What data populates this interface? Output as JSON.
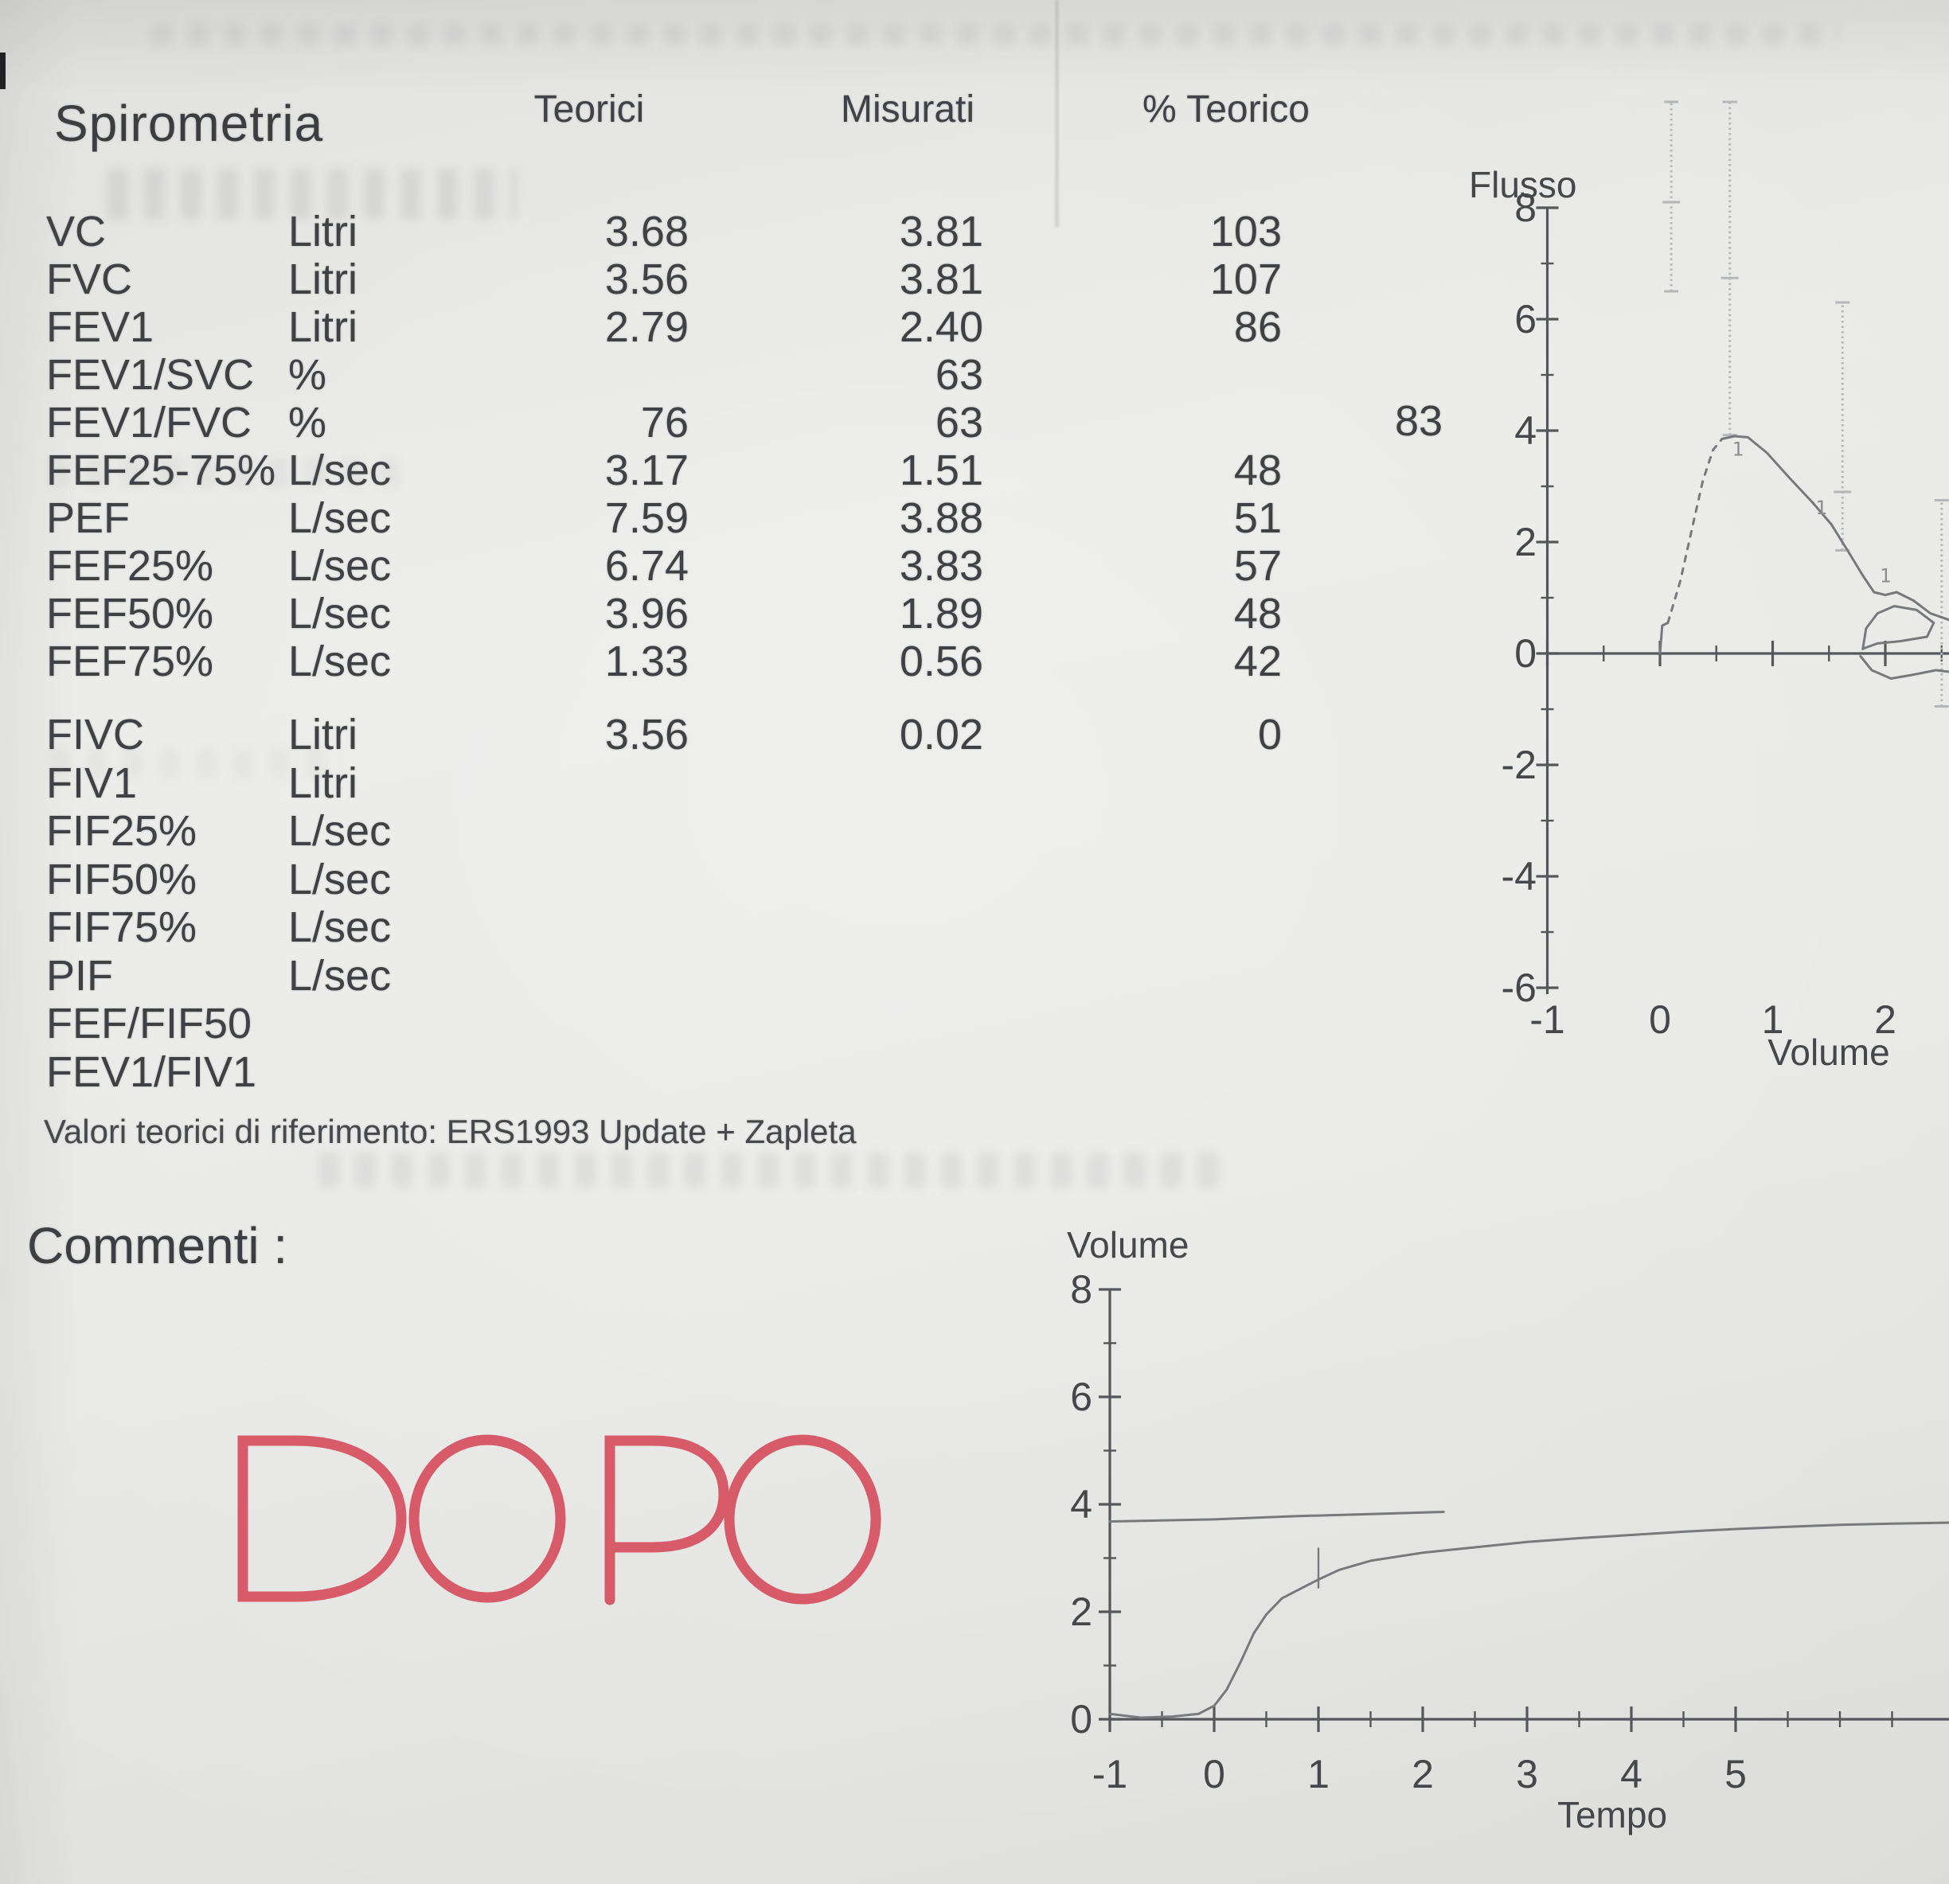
{
  "page": {
    "title": "Spirometria",
    "comments_label": "Commenti :",
    "stamp": "DOPO",
    "reference_note": "Valori teorici di riferimento: ERS1993 Update + Zapleta"
  },
  "table": {
    "headers": {
      "teorici": "Teorici",
      "misurati": "Misurati",
      "pct_teorico": "% Teorico"
    },
    "rows": [
      {
        "name": "VC",
        "unit": "Litri",
        "teorici": "3.68",
        "misurati": "3.81",
        "pct": "103",
        "extra": ""
      },
      {
        "name": "FVC",
        "unit": "Litri",
        "teorici": "3.56",
        "misurati": "3.81",
        "pct": "107",
        "extra": ""
      },
      {
        "name": "FEV1",
        "unit": "Litri",
        "teorici": "2.79",
        "misurati": "2.40",
        "pct": "86",
        "extra": ""
      },
      {
        "name": "FEV1/SVC",
        "unit": "%",
        "teorici": "",
        "misurati": "63",
        "pct": "",
        "extra": ""
      },
      {
        "name": "FEV1/FVC",
        "unit": "%",
        "teorici": "76",
        "misurati": "63",
        "pct": "",
        "extra": "83"
      },
      {
        "name": "FEF25-75%",
        "unit": "L/sec",
        "teorici": "3.17",
        "misurati": "1.51",
        "pct": "48",
        "extra": ""
      },
      {
        "name": "PEF",
        "unit": "L/sec",
        "teorici": "7.59",
        "misurati": "3.88",
        "pct": "51",
        "extra": ""
      },
      {
        "name": "FEF25%",
        "unit": "L/sec",
        "teorici": "6.74",
        "misurati": "3.83",
        "pct": "57",
        "extra": ""
      },
      {
        "name": "FEF50%",
        "unit": "L/sec",
        "teorici": "3.96",
        "misurati": "1.89",
        "pct": "48",
        "extra": ""
      },
      {
        "name": "FEF75%",
        "unit": "L/sec",
        "teorici": "1.33",
        "misurati": "0.56",
        "pct": "42",
        "extra": ""
      },
      {
        "name": "FIVC",
        "unit": "Litri",
        "teorici": "3.56",
        "misurati": "0.02",
        "pct": "0",
        "extra": ""
      },
      {
        "name": "FIV1",
        "unit": "Litri",
        "teorici": "",
        "misurati": "",
        "pct": "",
        "extra": ""
      },
      {
        "name": "FIF25%",
        "unit": "L/sec",
        "teorici": "",
        "misurati": "",
        "pct": "",
        "extra": ""
      },
      {
        "name": "FIF50%",
        "unit": "L/sec",
        "teorici": "",
        "misurati": "",
        "pct": "",
        "extra": ""
      },
      {
        "name": "FIF75%",
        "unit": "L/sec",
        "teorici": "",
        "misurati": "",
        "pct": "",
        "extra": ""
      },
      {
        "name": "PIF",
        "unit": "L/sec",
        "teorici": "",
        "misurati": "",
        "pct": "",
        "extra": ""
      },
      {
        "name": "FEF/FIF50",
        "unit": "",
        "teorici": "",
        "misurati": "",
        "pct": "",
        "extra": ""
      },
      {
        "name": "FEV1/FIV1",
        "unit": "",
        "teorici": "",
        "misurati": "",
        "pct": "",
        "extra": ""
      }
    ]
  },
  "chart_data": [
    {
      "id": "flow_volume",
      "type": "line",
      "title": "",
      "ylabel": "Flusso",
      "xlabel": "Volume",
      "xlim": [
        -1,
        2.57
      ],
      "ylim": [
        -6,
        8
      ],
      "grid": false,
      "y_ticks": [
        8,
        6,
        4,
        2,
        0,
        -2,
        -4,
        -6
      ],
      "y_tick_labels": [
        "8",
        "6",
        "4",
        "2",
        "0",
        "-2",
        "-4",
        "-6"
      ],
      "y_minor": [
        7,
        5,
        3,
        1,
        -1,
        -3,
        -5
      ],
      "x_ticks": [
        -1,
        0,
        1,
        2
      ],
      "x_tick_labels": [
        "-1",
        "0",
        "1",
        "2"
      ],
      "x_minor": [
        -0.5,
        0.5,
        1.5,
        2.5
      ],
      "series": [
        {
          "name": "expiratory-start",
          "dashed": false,
          "points": [
            [
              0,
              0
            ],
            [
              0.02,
              0.5
            ],
            [
              0.07,
              0.55
            ]
          ]
        },
        {
          "name": "expiratory-rise",
          "dashed": true,
          "points": [
            [
              0.07,
              0.55
            ],
            [
              0.18,
              1.3
            ],
            [
              0.28,
              2.2
            ],
            [
              0.38,
              3.1
            ],
            [
              0.47,
              3.65
            ],
            [
              0.55,
              3.85
            ]
          ]
        },
        {
          "name": "expiratory-descent",
          "dashed": false,
          "points": [
            [
              0.55,
              3.85
            ],
            [
              0.66,
              3.9
            ],
            [
              0.78,
              3.88
            ],
            [
              0.95,
              3.6
            ],
            [
              1.15,
              3.15
            ],
            [
              1.35,
              2.72
            ],
            [
              1.52,
              2.32
            ],
            [
              1.68,
              1.8
            ],
            [
              1.8,
              1.4
            ],
            [
              1.9,
              1.1
            ],
            [
              2.0,
              1.05
            ],
            [
              2.1,
              1.1
            ],
            [
              2.25,
              0.95
            ],
            [
              2.4,
              0.72
            ],
            [
              2.57,
              0.6
            ]
          ]
        },
        {
          "name": "inspiratory-limb",
          "dashed": false,
          "points": [
            [
              1.78,
              -0.05
            ],
            [
              1.88,
              -0.3
            ],
            [
              2.05,
              -0.45
            ],
            [
              2.25,
              -0.38
            ],
            [
              2.45,
              -0.3
            ],
            [
              2.57,
              -0.33
            ]
          ]
        },
        {
          "name": "tidal-loop",
          "dashed": false,
          "points": [
            [
              1.8,
              0.08
            ],
            [
              1.83,
              0.45
            ],
            [
              1.93,
              0.72
            ],
            [
              2.08,
              0.85
            ],
            [
              2.28,
              0.78
            ],
            [
              2.43,
              0.55
            ],
            [
              2.37,
              0.3
            ],
            [
              2.13,
              0.22
            ],
            [
              1.93,
              0.18
            ],
            [
              1.82,
              0.1
            ],
            [
              1.8,
              0.08
            ]
          ]
        }
      ],
      "normal_range_bars": [
        {
          "x": 0.1,
          "from": 6.5,
          "to": 9.9,
          "tick": 8.1
        },
        {
          "x": 0.62,
          "from": 3.92,
          "to": 9.9,
          "tick": 6.74
        },
        {
          "x": 1.62,
          "from": 1.85,
          "to": 6.3,
          "tick": 2.9
        },
        {
          "x": 2.5,
          "from": -0.95,
          "to": 2.75,
          "tick": null
        }
      ],
      "point_markers": [
        {
          "label": "1",
          "x": 0.64,
          "y": 3.55
        },
        {
          "label": "1",
          "x": 1.38,
          "y": 2.5
        },
        {
          "label": "1",
          "x": 1.95,
          "y": 1.28
        }
      ]
    },
    {
      "id": "volume_time",
      "type": "line",
      "title": "",
      "ylabel": "Volume",
      "xlabel": "Tempo",
      "xlim": [
        -1,
        7.05
      ],
      "ylim": [
        0,
        8
      ],
      "grid": false,
      "y_ticks": [
        8,
        6,
        4,
        2,
        0
      ],
      "y_tick_labels": [
        "8",
        "6",
        "4",
        "2",
        "0"
      ],
      "y_minor": [
        7,
        5,
        3,
        1
      ],
      "x_ticks": [
        -1,
        0,
        1,
        2,
        3,
        4,
        5
      ],
      "x_tick_labels": [
        "-1",
        "0",
        "1",
        "2",
        "3",
        "4",
        "5"
      ],
      "x_minor": [
        -0.5,
        0.5,
        1.5,
        2.5,
        3.5,
        4.5,
        5.5,
        6,
        6.5
      ],
      "series": [
        {
          "name": "volume-curve",
          "dashed": false,
          "points": [
            [
              -1,
              0.1
            ],
            [
              -0.7,
              0.03
            ],
            [
              -0.4,
              0.05
            ],
            [
              -0.15,
              0.1
            ],
            [
              0,
              0.25
            ],
            [
              0.12,
              0.55
            ],
            [
              0.25,
              1.05
            ],
            [
              0.38,
              1.6
            ],
            [
              0.5,
              1.95
            ],
            [
              0.65,
              2.25
            ],
            [
              0.85,
              2.45
            ],
            [
              1,
              2.6
            ],
            [
              1.2,
              2.78
            ],
            [
              1.5,
              2.95
            ],
            [
              2,
              3.1
            ],
            [
              2.5,
              3.2
            ],
            [
              3,
              3.3
            ],
            [
              3.5,
              3.37
            ],
            [
              4,
              3.43
            ],
            [
              4.5,
              3.49
            ],
            [
              5,
              3.54
            ],
            [
              5.5,
              3.58
            ],
            [
              6,
              3.62
            ],
            [
              6.5,
              3.64
            ],
            [
              7.05,
              3.66
            ]
          ]
        },
        {
          "name": "reference-plateau-line",
          "dashed": false,
          "points": [
            [
              -1,
              3.68
            ],
            [
              0,
              3.72
            ],
            [
              0.8,
              3.78
            ],
            [
              1.5,
              3.82
            ],
            [
              2.2,
              3.86
            ]
          ]
        }
      ],
      "line_markers": [
        {
          "x": 1,
          "from": 2.45,
          "to": 3.18
        }
      ],
      "point_markers": []
    }
  ]
}
